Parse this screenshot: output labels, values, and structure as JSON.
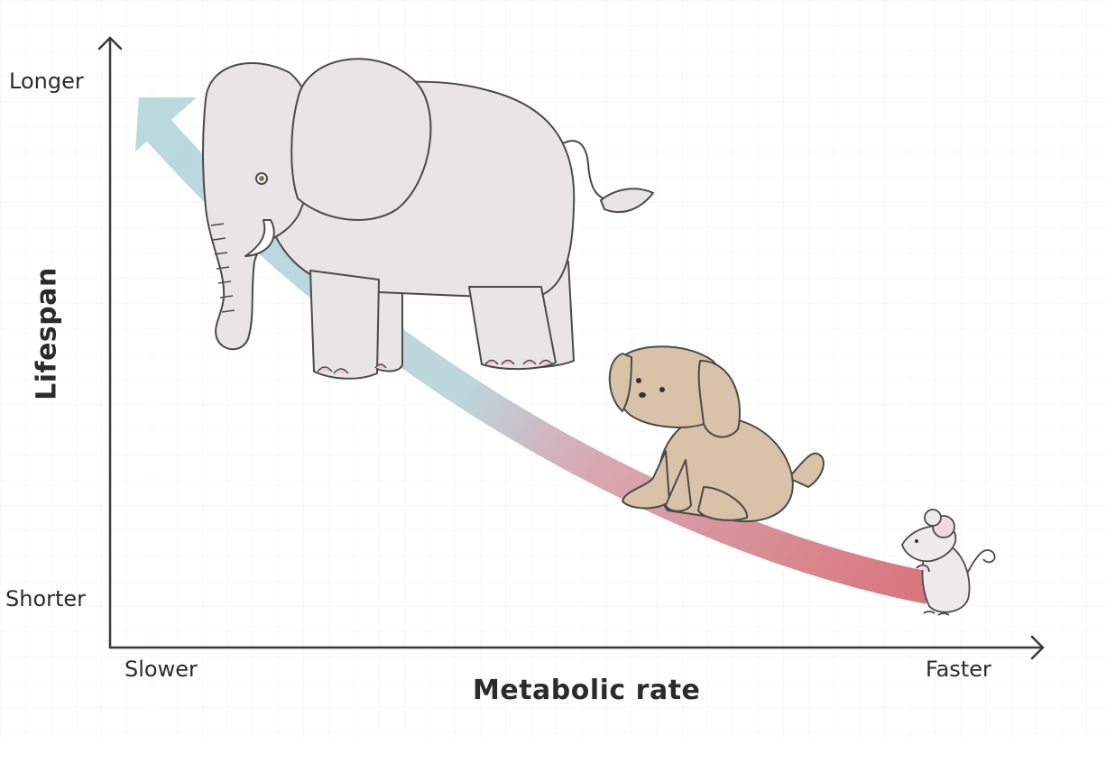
{
  "y_axis": {
    "title": "Lifespan",
    "top_label": "Longer",
    "bottom_label": "Shorter"
  },
  "x_axis": {
    "title": "Metabolic rate",
    "left_label": "Slower",
    "right_label": "Faster"
  },
  "illustrations": {
    "large_animal": "elephant",
    "medium_animal": "dog",
    "small_animal": "mouse"
  },
  "colors": {
    "axis": "#3a3a3a",
    "grid": "#eeeeee",
    "trend_start": "#b8d8de",
    "trend_end": "#d9787e",
    "elephant_fill": "#e9e5e7",
    "dog_fill": "#d8c3a8",
    "mouse_fill": "#eeeaec",
    "outline": "#4a4a4a"
  }
}
